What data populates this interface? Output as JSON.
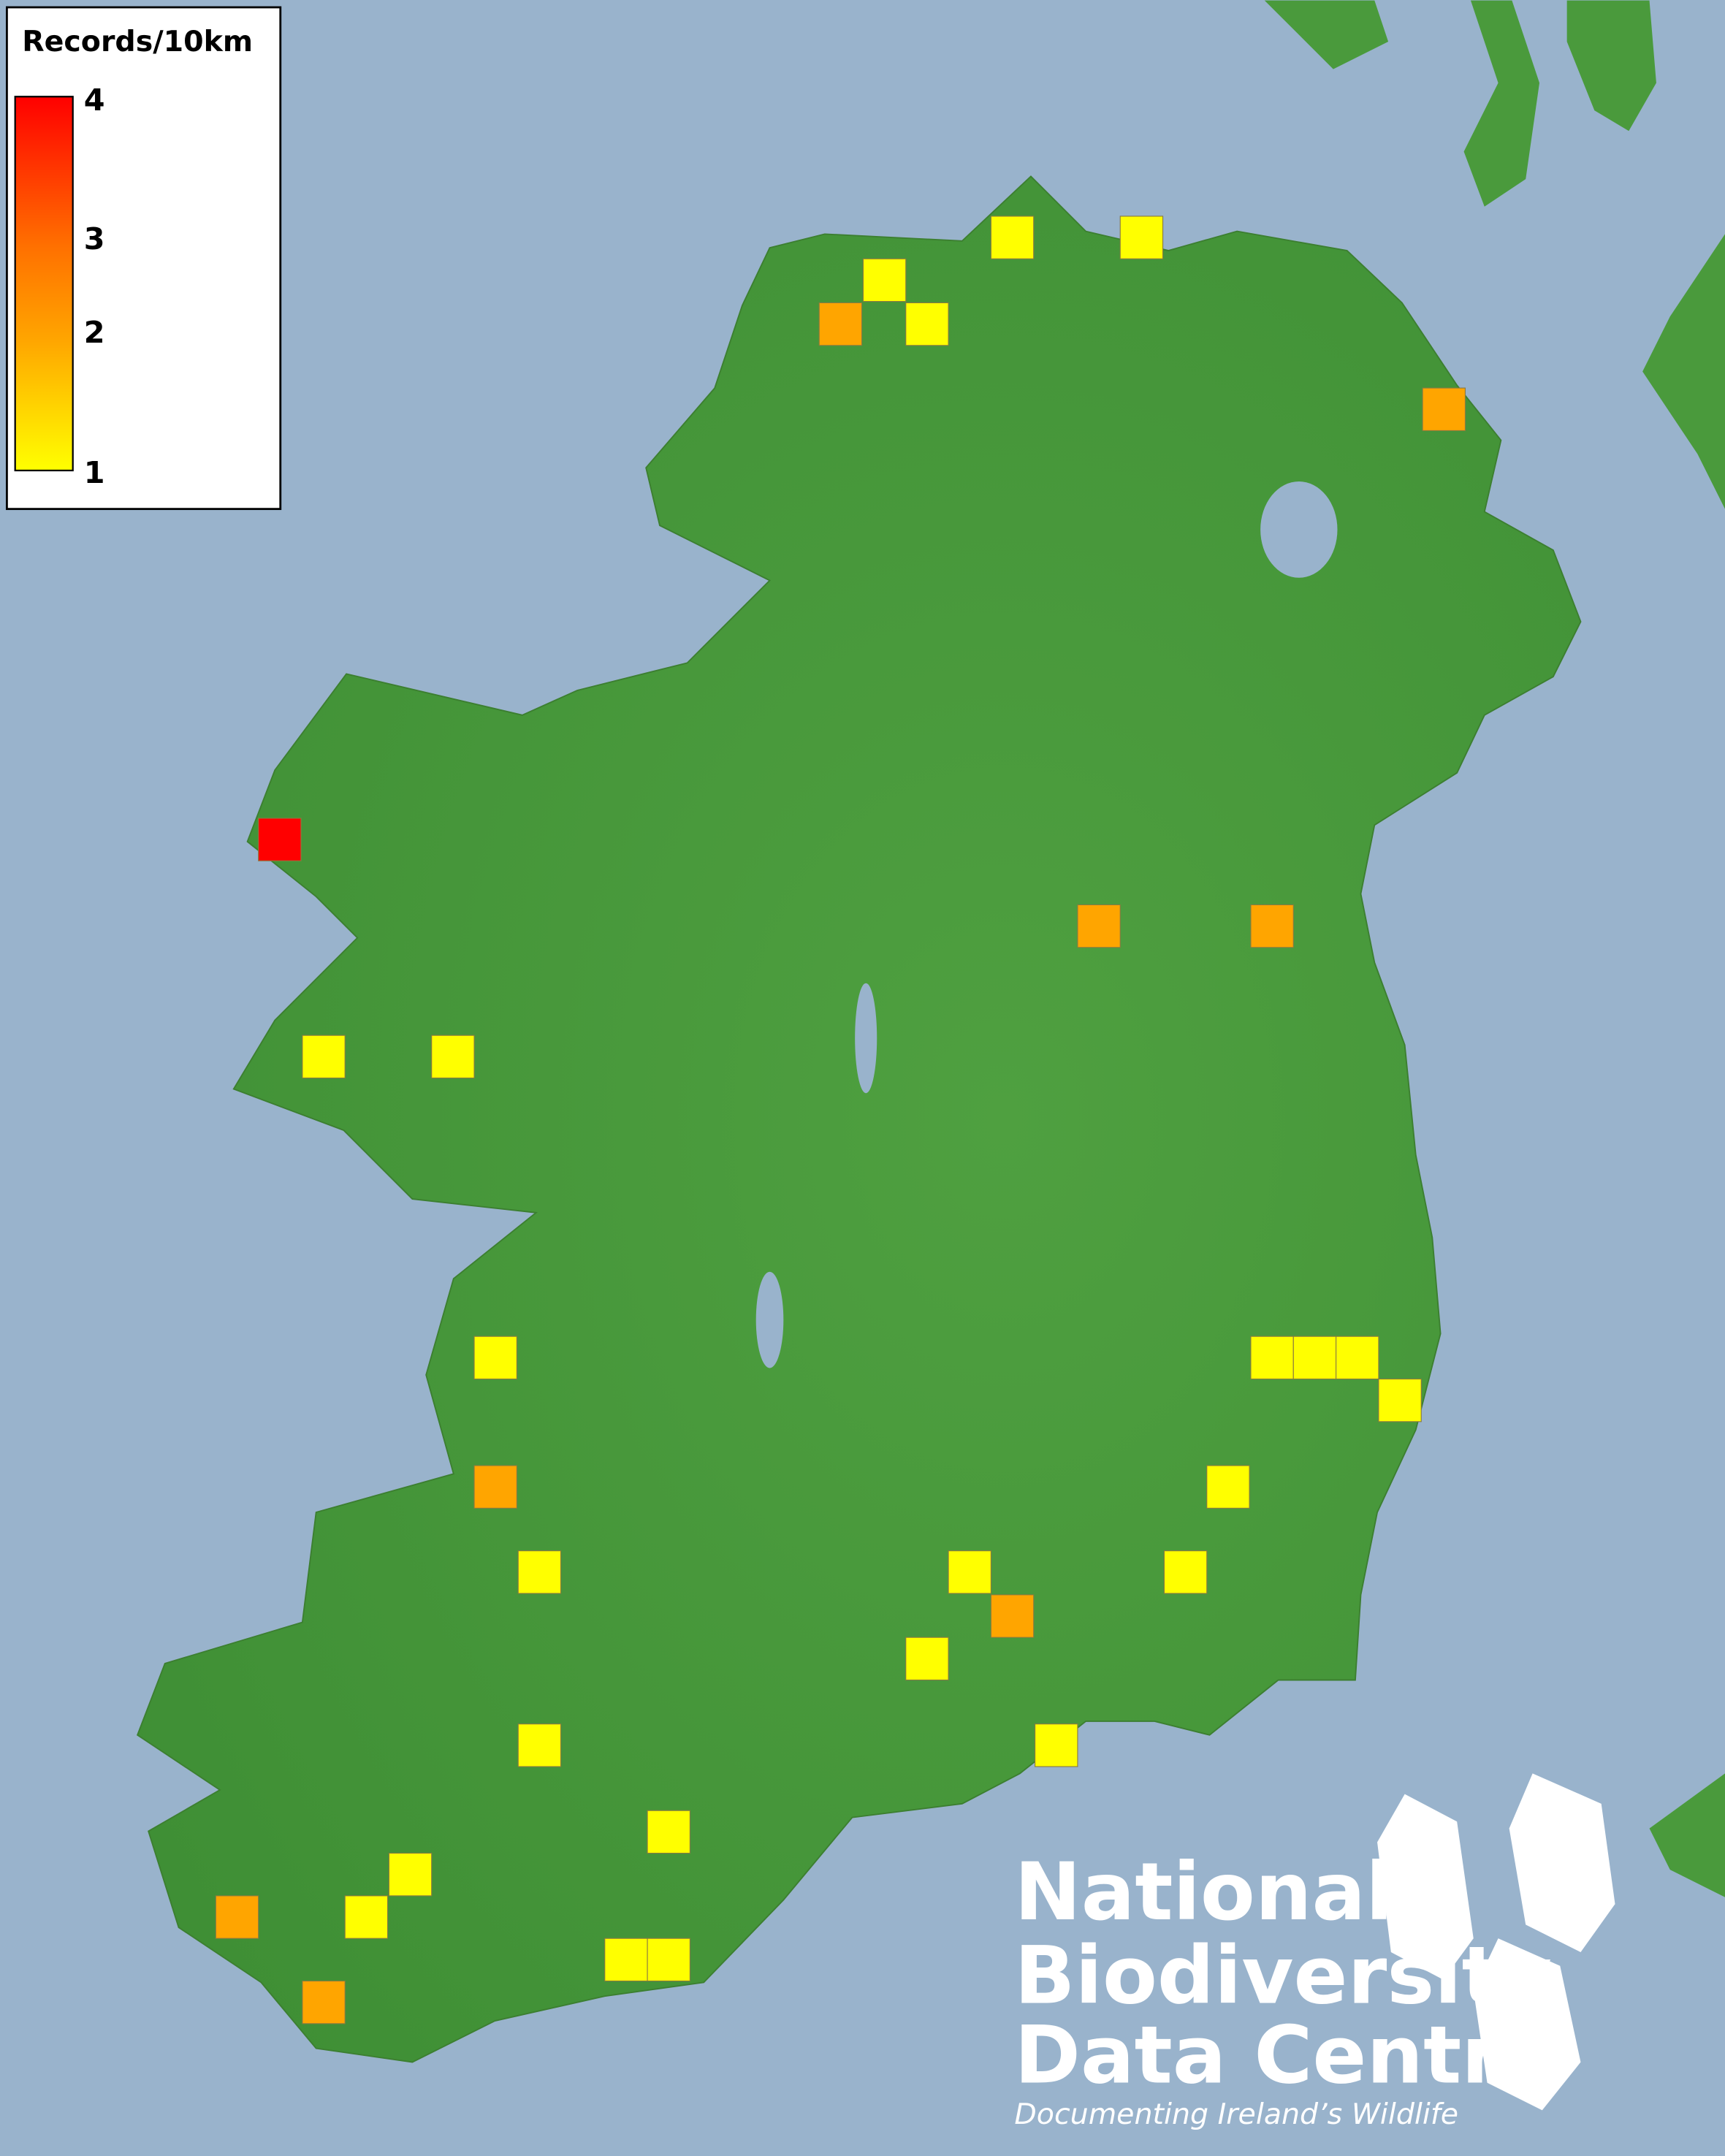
{
  "legend": {
    "title": "Records/10km",
    "ticks": [
      "4",
      "3",
      "2",
      "1"
    ],
    "min": 1,
    "max": 4,
    "color_low": "#ffff00",
    "color_mid": "#ff8c00",
    "color_high": "#ff0000"
  },
  "map": {
    "sea_color": "#99b3cc",
    "land_color": "#4a9a3c",
    "square_records": [
      1,
      1,
      1,
      1,
      1,
      1,
      1,
      1,
      1,
      1,
      1,
      1,
      1,
      1,
      1,
      1,
      1,
      1,
      1,
      1,
      1,
      1,
      1,
      2,
      2,
      2,
      2,
      2,
      2,
      2,
      2,
      4
    ],
    "category_colors": {
      "1": "#ffff00",
      "2": "#ffa500",
      "4": "#ff0000"
    }
  },
  "logo": {
    "line1": "National",
    "line2": "Biodiversity",
    "line3": "Data Centre",
    "tagline": "Documenting Ireland’s Wildlife",
    "icons": [
      "tree-icon",
      "butterfly-icon",
      "seahorse-icon"
    ]
  }
}
